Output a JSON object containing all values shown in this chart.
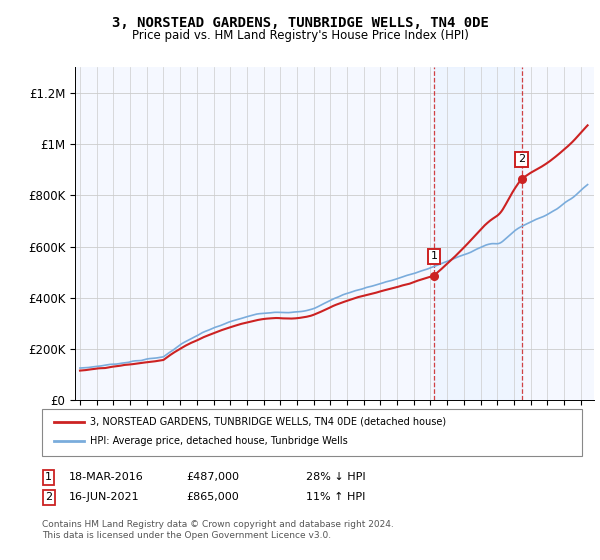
{
  "title": "3, NORSTEAD GARDENS, TUNBRIDGE WELLS, TN4 0DE",
  "subtitle": "Price paid vs. HM Land Registry's House Price Index (HPI)",
  "sale1_date": "18-MAR-2016",
  "sale1_price": 487000,
  "sale1_pct": "28% ↓ HPI",
  "sale1_x": 2016.21,
  "sale2_date": "16-JUN-2021",
  "sale2_price": 865000,
  "sale2_pct": "11% ↑ HPI",
  "sale2_x": 2021.46,
  "legend_label1": "3, NORSTEAD GARDENS, TUNBRIDGE WELLS, TN4 0DE (detached house)",
  "legend_label2": "HPI: Average price, detached house, Tunbridge Wells",
  "footnote": "Contains HM Land Registry data © Crown copyright and database right 2024.\nThis data is licensed under the Open Government Licence v3.0.",
  "hpi_color": "#7aacdc",
  "sale_color": "#cc2222",
  "grid_color": "#cccccc",
  "shade_color": "#ddeeff",
  "ylim_max": 1300000,
  "xlim_min": 1994.7,
  "xlim_max": 2025.8
}
